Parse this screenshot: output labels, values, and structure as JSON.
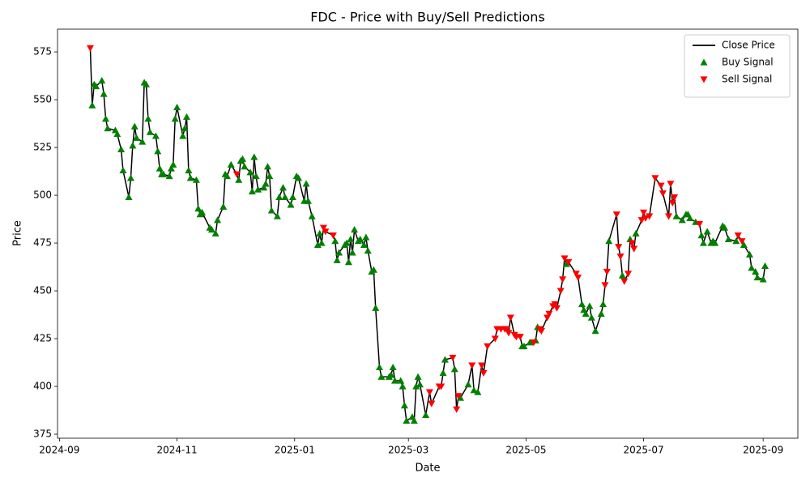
{
  "chart_data": {
    "type": "line",
    "title": "FDC - Price with Buy/Sell Predictions",
    "x_label": "Date",
    "y_label": "Price",
    "xlim": [
      "2024-08-31",
      "2025-09-19"
    ],
    "ylim": [
      372.9,
      586.9
    ],
    "xticks": [
      {
        "value": "2024-09-01",
        "label": "2024-09"
      },
      {
        "value": "2024-11-01",
        "label": "2024-11"
      },
      {
        "value": "2025-01-01",
        "label": "2025-01"
      },
      {
        "value": "2025-03-01",
        "label": "2025-03"
      },
      {
        "value": "2025-05-01",
        "label": "2025-05"
      },
      {
        "value": "2025-07-01",
        "label": "2025-07"
      },
      {
        "value": "2025-09-01",
        "label": "2025-09"
      }
    ],
    "yticks": [
      375,
      400,
      425,
      450,
      475,
      500,
      525,
      550,
      575
    ],
    "legend": "upper right",
    "grid": false,
    "series": [
      {
        "name": "Close Price",
        "type": "line",
        "color": "#000000",
        "x": [
          "2024-09-17",
          "2024-09-18",
          "2024-09-19",
          "2024-09-20",
          "2024-09-23",
          "2024-09-24",
          "2024-09-25",
          "2024-09-26",
          "2024-09-30",
          "2024-10-01",
          "2024-10-03",
          "2024-10-04",
          "2024-10-07",
          "2024-10-08",
          "2024-10-09",
          "2024-10-10",
          "2024-10-11",
          "2024-10-14",
          "2024-10-15",
          "2024-10-16",
          "2024-10-17",
          "2024-10-18",
          "2024-10-21",
          "2024-10-22",
          "2024-10-23",
          "2024-10-24",
          "2024-10-25",
          "2024-10-28",
          "2024-10-29",
          "2024-10-30",
          "2024-10-31",
          "2024-11-01",
          "2024-11-04",
          "2024-11-05",
          "2024-11-06",
          "2024-11-07",
          "2024-11-08",
          "2024-11-11",
          "2024-11-12",
          "2024-11-13",
          "2024-11-14",
          "2024-11-18",
          "2024-11-19",
          "2024-11-21",
          "2024-11-22",
          "2024-11-25",
          "2024-11-26",
          "2024-11-27",
          "2024-11-29",
          "2024-12-02",
          "2024-12-03",
          "2024-12-04",
          "2024-12-05",
          "2024-12-06",
          "2024-12-09",
          "2024-12-10",
          "2024-12-11",
          "2024-12-12",
          "2024-12-13",
          "2024-12-16",
          "2024-12-17",
          "2024-12-18",
          "2024-12-19",
          "2024-12-20",
          "2024-12-23",
          "2024-12-24",
          "2024-12-26",
          "2024-12-27",
          "2024-12-30",
          "2024-12-31",
          "2025-01-02",
          "2025-01-03",
          "2025-01-06",
          "2025-01-07",
          "2025-01-08",
          "2025-01-10",
          "2025-01-13",
          "2025-01-14",
          "2025-01-15",
          "2025-01-16",
          "2025-01-17",
          "2025-01-21",
          "2025-01-22",
          "2025-01-23",
          "2025-01-24",
          "2025-01-27",
          "2025-01-28",
          "2025-01-29",
          "2025-01-30",
          "2025-01-31",
          "2025-02-01",
          "2025-02-03",
          "2025-02-04",
          "2025-02-06",
          "2025-02-07",
          "2025-02-08",
          "2025-02-10",
          "2025-02-11",
          "2025-02-12",
          "2025-02-14",
          "2025-02-15",
          "2025-02-19",
          "2025-02-20",
          "2025-02-21",
          "2025-02-22",
          "2025-02-25",
          "2025-02-26",
          "2025-02-27",
          "2025-02-28",
          "2025-03-03",
          "2025-03-04",
          "2025-03-05",
          "2025-03-06",
          "2025-03-07",
          "2025-03-10",
          "2025-03-12",
          "2025-03-13",
          "2025-03-17",
          "2025-03-18",
          "2025-03-19",
          "2025-03-20",
          "2025-03-24",
          "2025-03-25",
          "2025-03-26",
          "2025-03-27",
          "2025-03-28",
          "2025-04-01",
          "2025-04-03",
          "2025-04-04",
          "2025-04-06",
          "2025-04-08",
          "2025-04-09",
          "2025-04-11",
          "2025-04-15",
          "2025-04-16",
          "2025-04-18",
          "2025-04-20",
          "2025-04-21",
          "2025-04-22",
          "2025-04-23",
          "2025-04-25",
          "2025-04-26",
          "2025-04-28",
          "2025-04-29",
          "2025-04-30",
          "2025-05-03",
          "2025-05-05",
          "2025-05-06",
          "2025-05-07",
          "2025-05-08",
          "2025-05-09",
          "2025-05-12",
          "2025-05-13",
          "2025-05-15",
          "2025-05-16",
          "2025-05-17",
          "2025-05-19",
          "2025-05-20",
          "2025-05-21",
          "2025-05-22",
          "2025-05-23",
          "2025-05-27",
          "2025-05-28",
          "2025-05-30",
          "2025-05-31",
          "2025-06-01",
          "2025-06-03",
          "2025-06-04",
          "2025-06-06",
          "2025-06-09",
          "2025-06-10",
          "2025-06-11",
          "2025-06-12",
          "2025-06-13",
          "2025-06-17",
          "2025-06-18",
          "2025-06-19",
          "2025-06-20",
          "2025-06-21",
          "2025-06-23",
          "2025-06-24",
          "2025-06-25",
          "2025-06-26",
          "2025-06-27",
          "2025-06-30",
          "2025-07-01",
          "2025-07-02",
          "2025-07-04",
          "2025-07-07",
          "2025-07-10",
          "2025-07-11",
          "2025-07-14",
          "2025-07-15",
          "2025-07-16",
          "2025-07-17",
          "2025-07-18",
          "2025-07-21",
          "2025-07-23",
          "2025-07-24",
          "2025-07-25",
          "2025-07-28",
          "2025-07-30",
          "2025-07-31",
          "2025-08-01",
          "2025-08-03",
          "2025-08-05",
          "2025-08-06",
          "2025-08-07",
          "2025-08-11",
          "2025-08-12",
          "2025-08-14",
          "2025-08-18",
          "2025-08-19",
          "2025-08-21",
          "2025-08-22",
          "2025-08-25",
          "2025-08-26",
          "2025-08-28",
          "2025-08-29",
          "2025-09-01",
          "2025-09-02"
        ],
        "values": [
          577,
          547,
          558,
          557,
          560,
          553,
          540,
          535,
          534,
          532,
          524,
          513,
          499,
          509,
          526,
          536,
          530,
          528,
          559,
          558,
          540,
          533,
          531,
          523,
          514,
          511,
          511,
          510,
          514,
          516,
          540,
          546,
          531,
          535,
          541,
          513,
          509,
          508,
          493,
          490,
          491,
          483,
          482,
          480,
          487,
          494,
          511,
          510,
          516,
          511,
          508,
          518,
          519,
          515,
          512,
          502,
          520,
          510,
          503,
          504,
          506,
          515,
          510,
          492,
          489,
          499,
          504,
          499,
          495,
          499,
          510,
          509,
          497,
          506,
          497,
          489,
          474,
          480,
          475,
          483,
          481,
          479,
          476,
          466,
          470,
          474,
          475,
          465,
          477,
          470,
          482,
          476,
          477,
          474,
          478,
          471,
          460,
          461,
          441,
          410,
          405,
          405,
          406,
          410,
          403,
          403,
          400,
          390,
          382,
          384,
          382,
          400,
          405,
          401,
          385,
          397,
          391,
          400,
          400,
          407,
          414,
          415,
          409,
          388,
          395,
          394,
          401,
          411,
          398,
          397,
          411,
          407,
          421,
          425,
          430,
          430,
          430,
          430,
          428,
          436,
          427,
          426,
          426,
          421,
          421,
          423,
          423,
          424,
          431,
          430,
          429,
          436,
          438,
          442,
          443,
          441,
          450,
          456,
          467,
          464,
          465,
          459,
          457,
          443,
          440,
          438,
          442,
          436,
          429,
          438,
          443,
          453,
          460,
          476,
          490,
          473,
          468,
          458,
          455,
          459,
          477,
          475,
          472,
          480,
          487,
          491,
          488,
          489,
          509,
          505,
          501,
          489,
          506,
          496,
          499,
          489,
          487,
          490,
          490,
          488,
          486,
          485,
          479,
          475,
          481,
          475,
          476,
          475,
          484,
          483,
          477,
          476,
          479,
          476,
          474,
          469,
          462,
          460,
          457,
          456,
          463
        ]
      },
      {
        "name": "Buy Signal",
        "type": "scatter",
        "marker": "triangle-up",
        "color": "#008000",
        "x": [
          "2024-09-18",
          "2024-09-19",
          "2024-09-20",
          "2024-09-23",
          "2024-09-24",
          "2024-09-25",
          "2024-09-26",
          "2024-09-30",
          "2024-10-01",
          "2024-10-03",
          "2024-10-04",
          "2024-10-07",
          "2024-10-08",
          "2024-10-09",
          "2024-10-10",
          "2024-10-11",
          "2024-10-14",
          "2024-10-15",
          "2024-10-16",
          "2024-10-17",
          "2024-10-18",
          "2024-10-21",
          "2024-10-22",
          "2024-10-23",
          "2024-10-24",
          "2024-10-25",
          "2024-10-28",
          "2024-10-29",
          "2024-10-30",
          "2024-10-31",
          "2024-11-01",
          "2024-11-04",
          "2024-11-05",
          "2024-11-06",
          "2024-11-07",
          "2024-11-08",
          "2024-11-11",
          "2024-11-12",
          "2024-11-13",
          "2024-11-14",
          "2024-11-18",
          "2024-11-19",
          "2024-11-21",
          "2024-11-22",
          "2024-11-25",
          "2024-11-26",
          "2024-11-27",
          "2024-11-29",
          "2024-12-03",
          "2024-12-04",
          "2024-12-05",
          "2024-12-06",
          "2024-12-09",
          "2024-12-10",
          "2024-12-11",
          "2024-12-12",
          "2024-12-13",
          "2024-12-16",
          "2024-12-17",
          "2024-12-18",
          "2024-12-19",
          "2024-12-20",
          "2024-12-23",
          "2024-12-24",
          "2024-12-26",
          "2024-12-27",
          "2024-12-30",
          "2024-12-31",
          "2025-01-02",
          "2025-01-03",
          "2025-01-06",
          "2025-01-07",
          "2025-01-08",
          "2025-01-10",
          "2025-01-13",
          "2025-01-14",
          "2025-01-15",
          "2025-01-22",
          "2025-01-23",
          "2025-01-24",
          "2025-01-27",
          "2025-01-28",
          "2025-01-29",
          "2025-01-30",
          "2025-01-31",
          "2025-02-01",
          "2025-02-03",
          "2025-02-04",
          "2025-02-06",
          "2025-02-07",
          "2025-02-08",
          "2025-02-10",
          "2025-02-11",
          "2025-02-12",
          "2025-02-14",
          "2025-02-15",
          "2025-02-19",
          "2025-02-20",
          "2025-02-21",
          "2025-02-22",
          "2025-02-25",
          "2025-02-26",
          "2025-02-27",
          "2025-02-28",
          "2025-03-03",
          "2025-03-04",
          "2025-03-05",
          "2025-03-06",
          "2025-03-07",
          "2025-03-10",
          "2025-03-19",
          "2025-03-20",
          "2025-03-25",
          "2025-03-28",
          "2025-04-01",
          "2025-04-04",
          "2025-04-06",
          "2025-04-29",
          "2025-04-30",
          "2025-05-03",
          "2025-05-06",
          "2025-05-07",
          "2025-05-22",
          "2025-05-30",
          "2025-05-31",
          "2025-06-01",
          "2025-06-03",
          "2025-06-04",
          "2025-06-06",
          "2025-06-09",
          "2025-06-10",
          "2025-06-13",
          "2025-06-20",
          "2025-06-24",
          "2025-06-27",
          "2025-07-18",
          "2025-07-21",
          "2025-07-23",
          "2025-07-24",
          "2025-07-25",
          "2025-07-28",
          "2025-07-31",
          "2025-08-01",
          "2025-08-03",
          "2025-08-05",
          "2025-08-06",
          "2025-08-07",
          "2025-08-11",
          "2025-08-12",
          "2025-08-14",
          "2025-08-18",
          "2025-08-22",
          "2025-08-25",
          "2025-08-26",
          "2025-08-28",
          "2025-08-29",
          "2025-09-01",
          "2025-09-02"
        ],
        "values": [
          547,
          558,
          557,
          560,
          553,
          540,
          535,
          534,
          532,
          524,
          513,
          499,
          509,
          526,
          536,
          530,
          528,
          559,
          558,
          540,
          533,
          531,
          523,
          514,
          511,
          511,
          510,
          514,
          516,
          540,
          546,
          531,
          535,
          541,
          513,
          509,
          508,
          493,
          490,
          491,
          483,
          482,
          480,
          487,
          494,
          511,
          510,
          516,
          508,
          518,
          519,
          515,
          512,
          502,
          520,
          510,
          503,
          504,
          506,
          515,
          510,
          492,
          489,
          499,
          504,
          499,
          495,
          499,
          510,
          509,
          497,
          506,
          497,
          489,
          474,
          480,
          475,
          476,
          466,
          470,
          474,
          475,
          465,
          477,
          470,
          482,
          476,
          477,
          474,
          478,
          471,
          460,
          461,
          441,
          410,
          405,
          405,
          406,
          410,
          403,
          403,
          400,
          390,
          382,
          384,
          382,
          400,
          405,
          401,
          385,
          407,
          414,
          409,
          394,
          401,
          398,
          397,
          421,
          421,
          423,
          424,
          431,
          464,
          443,
          440,
          438,
          442,
          436,
          429,
          438,
          443,
          476,
          458,
          477,
          480,
          489,
          487,
          490,
          490,
          488,
          486,
          479,
          475,
          481,
          475,
          476,
          475,
          484,
          483,
          477,
          476,
          474,
          469,
          462,
          460,
          457,
          456,
          463
        ]
      },
      {
        "name": "Sell Signal",
        "type": "scatter",
        "marker": "triangle-down",
        "color": "#ff0000",
        "x": [
          "2024-09-17",
          "2024-12-02",
          "2025-01-16",
          "2025-01-17",
          "2025-01-21",
          "2025-03-12",
          "2025-03-13",
          "2025-03-17",
          "2025-03-18",
          "2025-03-24",
          "2025-03-26",
          "2025-03-27",
          "2025-04-03",
          "2025-04-08",
          "2025-04-09",
          "2025-04-11",
          "2025-04-15",
          "2025-04-16",
          "2025-04-18",
          "2025-04-20",
          "2025-04-21",
          "2025-04-22",
          "2025-04-23",
          "2025-04-25",
          "2025-04-26",
          "2025-04-28",
          "2025-05-05",
          "2025-05-08",
          "2025-05-09",
          "2025-05-12",
          "2025-05-13",
          "2025-05-15",
          "2025-05-16",
          "2025-05-17",
          "2025-05-19",
          "2025-05-20",
          "2025-05-21",
          "2025-05-23",
          "2025-05-27",
          "2025-05-28",
          "2025-06-11",
          "2025-06-12",
          "2025-06-17",
          "2025-06-18",
          "2025-06-19",
          "2025-06-21",
          "2025-06-23",
          "2025-06-25",
          "2025-06-26",
          "2025-06-30",
          "2025-07-01",
          "2025-07-02",
          "2025-07-04",
          "2025-07-07",
          "2025-07-10",
          "2025-07-11",
          "2025-07-14",
          "2025-07-15",
          "2025-07-16",
          "2025-07-17",
          "2025-07-30",
          "2025-08-19",
          "2025-08-21"
        ],
        "values": [
          577,
          511,
          483,
          481,
          479,
          397,
          391,
          400,
          400,
          415,
          388,
          395,
          411,
          411,
          407,
          421,
          425,
          430,
          430,
          430,
          430,
          428,
          436,
          427,
          426,
          426,
          423,
          430,
          429,
          436,
          438,
          442,
          443,
          441,
          450,
          456,
          467,
          465,
          459,
          457,
          453,
          460,
          490,
          473,
          468,
          455,
          459,
          475,
          472,
          487,
          491,
          488,
          489,
          509,
          505,
          501,
          489,
          506,
          496,
          499,
          485,
          479,
          476
        ]
      }
    ]
  }
}
